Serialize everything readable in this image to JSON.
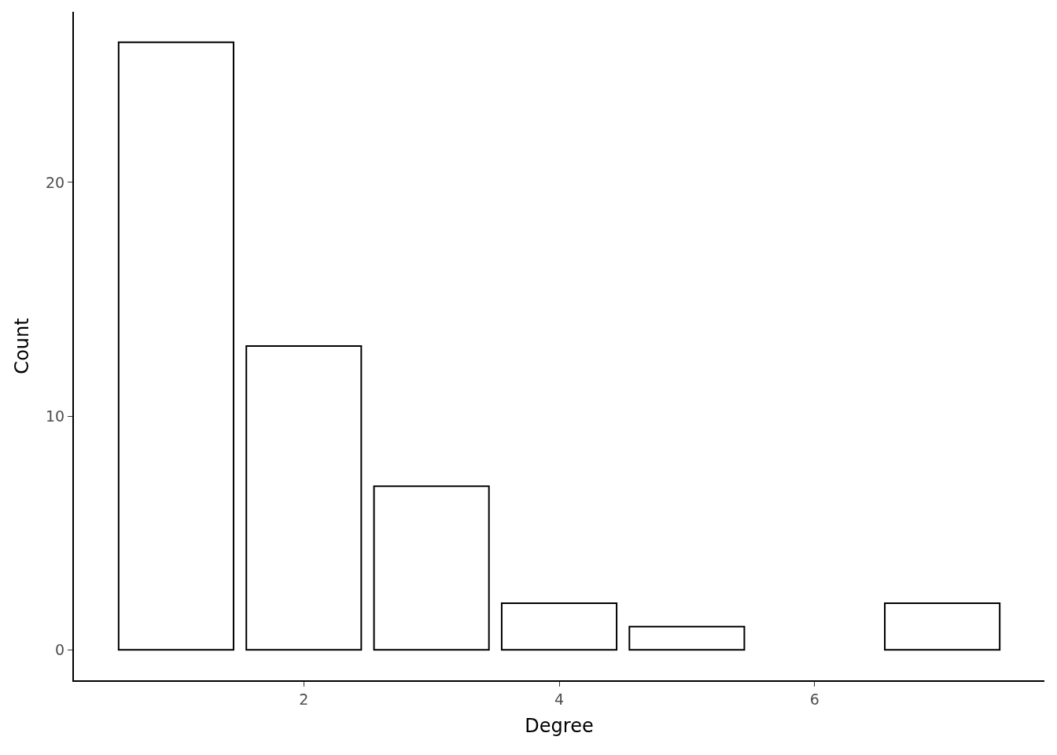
{
  "chart_data": {
    "type": "bar",
    "xlabel": "Degree",
    "ylabel": "Count",
    "x": [
      1,
      2,
      3,
      4,
      5,
      7
    ],
    "values": [
      26,
      13,
      7,
      2,
      1,
      2
    ],
    "color": "#ffffff",
    "xlim": [
      0.2,
      7.8
    ],
    "xticks": [
      2,
      4,
      6
    ],
    "ylim": [
      -1.3,
      27.3
    ],
    "yticks": [
      0,
      10,
      20
    ]
  }
}
